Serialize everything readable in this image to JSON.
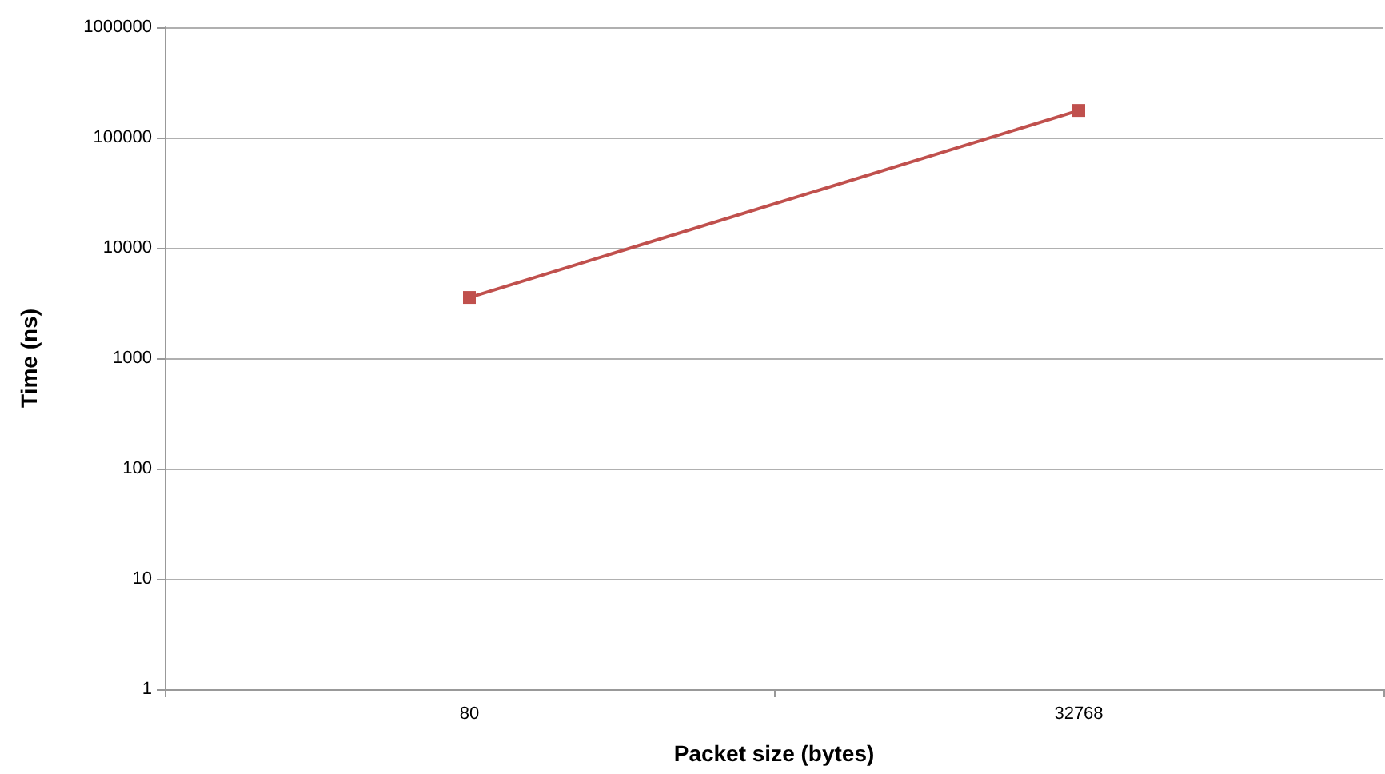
{
  "chart_data": {
    "type": "line",
    "xlabel": "Packet size (bytes)",
    "ylabel": "Time (ns)",
    "categories": [
      "80",
      "32768"
    ],
    "series": [
      {
        "color": "#c0504d",
        "values": [
          3550,
          176000
        ]
      }
    ],
    "log": true,
    "ylim": [
      1,
      1000000
    ],
    "yticks": [
      1,
      10,
      100,
      1000,
      10000,
      100000,
      1000000
    ],
    "grid": "y",
    "marker": "square",
    "line_style": "solid"
  }
}
